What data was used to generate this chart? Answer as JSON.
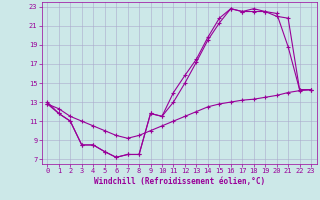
{
  "title": "Windchill (Refroidissement éolien,°C)",
  "xlim": [
    -0.5,
    23.5
  ],
  "ylim": [
    6.5,
    23.5
  ],
  "yticks": [
    7,
    9,
    11,
    13,
    15,
    17,
    19,
    21,
    23
  ],
  "xticks": [
    0,
    1,
    2,
    3,
    4,
    5,
    6,
    7,
    8,
    9,
    10,
    11,
    12,
    13,
    14,
    15,
    16,
    17,
    18,
    19,
    20,
    21,
    22,
    23
  ],
  "bg_color": "#cce8e8",
  "grid_color": "#aaaacc",
  "line_color": "#990099",
  "line1_x": [
    0,
    1,
    2,
    3,
    4,
    5,
    6,
    7,
    8,
    9,
    10,
    11,
    12,
    13,
    14,
    15,
    16,
    17,
    18,
    19,
    20,
    21,
    22,
    23
  ],
  "line1_y": [
    13.0,
    11.8,
    11.0,
    8.5,
    8.5,
    7.8,
    7.2,
    7.5,
    7.5,
    11.8,
    11.5,
    13.0,
    15.0,
    17.2,
    19.5,
    21.3,
    22.8,
    22.5,
    22.8,
    22.5,
    22.3,
    18.8,
    14.3,
    14.3
  ],
  "line2_x": [
    0,
    1,
    2,
    3,
    4,
    5,
    6,
    7,
    8,
    9,
    10,
    11,
    12,
    13,
    14,
    15,
    16,
    17,
    18,
    19,
    20,
    21,
    22,
    23
  ],
  "line2_y": [
    12.8,
    11.8,
    11.0,
    8.5,
    8.5,
    7.8,
    7.2,
    7.5,
    7.5,
    11.8,
    11.5,
    14.0,
    15.8,
    17.5,
    19.8,
    21.8,
    22.8,
    22.5,
    22.5,
    22.5,
    22.0,
    21.8,
    14.3,
    14.3
  ],
  "line3_x": [
    0,
    1,
    2,
    3,
    4,
    5,
    6,
    7,
    8,
    9,
    10,
    11,
    12,
    13,
    14,
    15,
    16,
    17,
    18,
    19,
    20,
    21,
    22,
    23
  ],
  "line3_y": [
    12.8,
    12.3,
    11.5,
    11.0,
    10.5,
    10.0,
    9.5,
    9.2,
    9.5,
    10.0,
    10.5,
    11.0,
    11.5,
    12.0,
    12.5,
    12.8,
    13.0,
    13.2,
    13.3,
    13.5,
    13.7,
    14.0,
    14.2,
    14.3
  ],
  "title_fontsize": 5.5,
  "tick_fontsize": 5,
  "lw": 0.8,
  "ms": 2.0
}
